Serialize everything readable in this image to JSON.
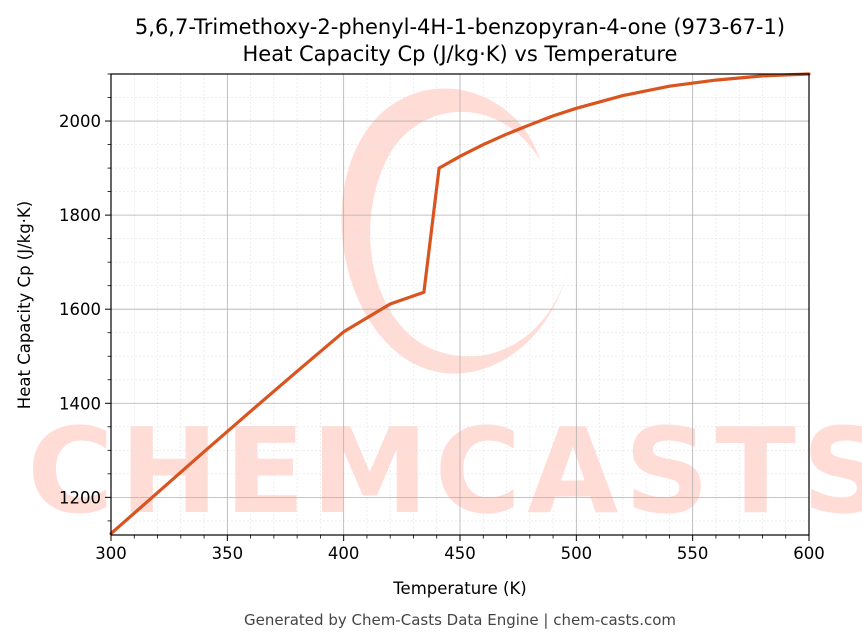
{
  "chart_data": {
    "type": "line",
    "title": "5,6,7-Trimethoxy-2-phenyl-4H-1-benzopyran-4-one (973-67-1)",
    "subtitle": "Heat Capacity Cp (J/kg·K) vs Temperature",
    "xlabel": "Temperature (K)",
    "ylabel": "Heat Capacity Cp (J/kg·K)",
    "xlim": [
      300,
      600
    ],
    "ylim": [
      1120,
      2100
    ],
    "xticks": [
      300,
      350,
      400,
      450,
      500,
      550,
      600
    ],
    "yticks": [
      1200,
      1400,
      1600,
      1800,
      2000
    ],
    "grid": true,
    "series": [
      {
        "color": "#d9541e",
        "x": [
          300,
          320,
          340,
          360,
          380,
          400,
          420,
          434.5,
          441,
          450,
          460,
          470,
          480,
          490,
          500,
          520,
          540,
          560,
          580,
          600
        ],
        "y": [
          1123,
          1210,
          1297,
          1383,
          1468,
          1552,
          1611,
          1636,
          1900,
          1925,
          1950,
          1972,
          1992,
          2011,
          2027,
          2054,
          2074,
          2087,
          2096,
          2100
        ]
      }
    ]
  },
  "watermark": "CHEMCASTS",
  "footer": "Generated by Chem-Casts Data Engine | chem-casts.com"
}
